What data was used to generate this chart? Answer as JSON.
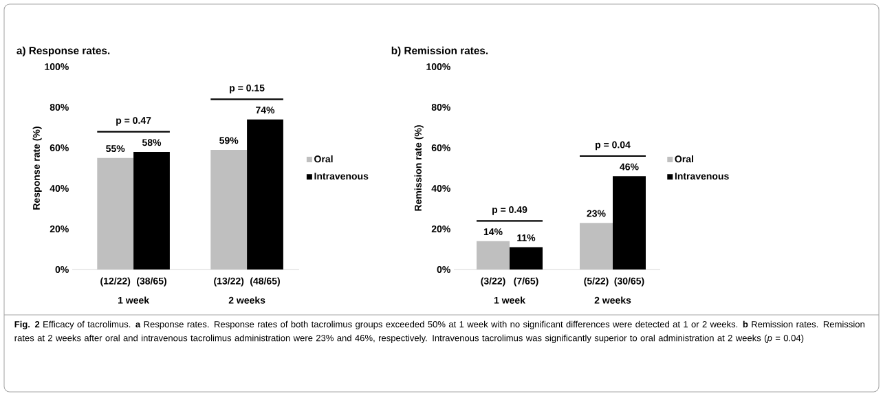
{
  "chart_data": [
    {
      "type": "bar",
      "title": "a) Response rates.",
      "ylabel": "Response rate (%)",
      "categories": [
        "1 week",
        "2 weeks"
      ],
      "series": [
        {
          "name": "Oral",
          "color": "#bfbfbf",
          "values": [
            55,
            59
          ],
          "value_labels": [
            "55%",
            "59%"
          ]
        },
        {
          "name": "Intravenous",
          "color": "#000000",
          "values": [
            58,
            74
          ],
          "value_labels": [
            "58%",
            "74%"
          ]
        }
      ],
      "ylim": [
        0,
        100
      ],
      "yticks": [
        {
          "value": 0,
          "label": "0%"
        },
        {
          "value": 20,
          "label": "20%"
        },
        {
          "value": 40,
          "label": "40%"
        },
        {
          "value": 60,
          "label": "60%"
        },
        {
          "value": 80,
          "label": "80%"
        },
        {
          "value": 100,
          "label": "100%"
        }
      ],
      "legend": "right",
      "annotations": [
        "p = 0.47",
        "p = 0.15",
        "(12/22)",
        "(38/65)",
        "(13/22)",
        "(48/65)",
        "**Fig. 2** Efficacy of tacrolimus. **a** Response rates. Response rates of both tacrolimus groups exceeded 50% at 1 week with no significant differences were detected at 1 or 2 weeks. **b** Remission rates. Remission rates at 2 weeks after oral and intravenous tacrolimus administration were 23% and 46%, respectively. Intravenous tacrolimus was significantly superior to oral administration at 2 weeks (*p* = 0.04)"
      ]
    },
    {
      "type": "bar",
      "title": "b) Remission rates.",
      "ylabel": "Remission rate (%)",
      "categories": [
        "1 week",
        "2 weeks"
      ],
      "series": [
        {
          "name": "Oral",
          "color": "#bfbfbf",
          "values": [
            14,
            23
          ],
          "value_labels": [
            "14%",
            "23%"
          ]
        },
        {
          "name": "Intravenous",
          "color": "#000000",
          "values": [
            11,
            46
          ],
          "value_labels": [
            "11%",
            "46%"
          ]
        }
      ],
      "ylim": [
        0,
        100
      ],
      "yticks": [
        {
          "value": 0,
          "label": "0%"
        },
        {
          "value": 20,
          "label": "20%"
        },
        {
          "value": 40,
          "label": "40%"
        },
        {
          "value": 60,
          "label": "60%"
        },
        {
          "value": 80,
          "label": "80%"
        },
        {
          "value": 100,
          "label": "100%"
        }
      ],
      "legend": "right",
      "annotations": [
        "p = 0.49",
        "p = 0.04",
        "(3/22)",
        "(7/65)",
        "(5/22)",
        "(30/65)"
      ]
    }
  ]
}
